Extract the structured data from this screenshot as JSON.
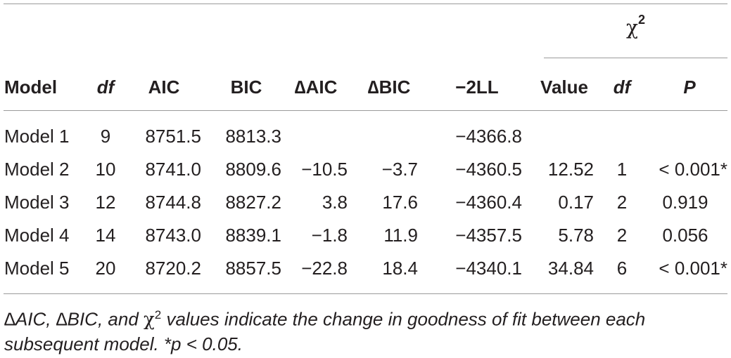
{
  "table": {
    "group_header": {
      "symbol": "χ",
      "exponent": "2"
    },
    "headers": [
      "Model",
      "df",
      "AIC",
      "BIC",
      "∆AIC",
      "∆BIC",
      "−2LL",
      "Value",
      "df",
      "P"
    ],
    "rows": [
      [
        "Model 1",
        "9",
        "8751.5",
        "8813.3",
        "",
        "",
        "−4366.8",
        "",
        "",
        ""
      ],
      [
        "Model 2",
        "10",
        "8741.0",
        "8809.6",
        "−10.5",
        "−3.7",
        "−4360.5",
        "12.52",
        "1",
        "< 0.001*"
      ],
      [
        "Model 3",
        "12",
        "8744.8",
        "8827.2",
        "3.8",
        "17.6",
        "−4360.4",
        "0.17",
        "2",
        "0.919"
      ],
      [
        "Model 4",
        "14",
        "8743.0",
        "8839.1",
        "−1.8",
        "11.9",
        "−4357.5",
        "5.78",
        "2",
        "0.056"
      ],
      [
        "Model 5",
        "20",
        "8720.2",
        "8857.5",
        "−22.8",
        "18.4",
        "−4340.1",
        "34.84",
        "6",
        "< 0.001*"
      ]
    ]
  },
  "footnote": {
    "part1": "∆AIC, ∆BIC, and ",
    "chi": "χ",
    "exponent": "2",
    "part2": " values indicate the change in goodness of fit between each subsequent model. *p < 0.05."
  }
}
